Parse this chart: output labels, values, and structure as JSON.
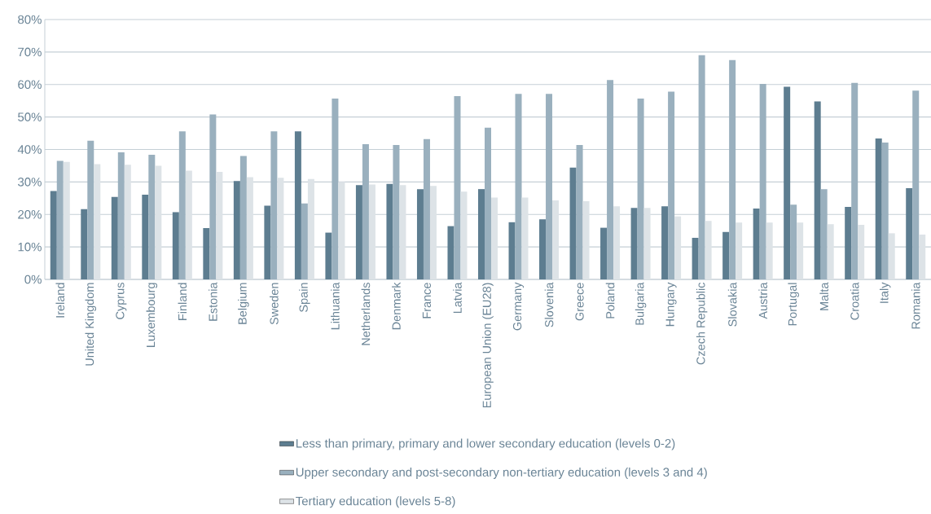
{
  "chart_data": {
    "type": "bar",
    "categories": [
      "Ireland",
      "United Kingdom",
      "Cyprus",
      "Luxembourg",
      "Finland",
      "Estonia",
      "Belgium",
      "Sweden",
      "Spain",
      "Lithuania",
      "Netherlands",
      "Denmark",
      "France",
      "Latvia",
      "European Union (EU28)",
      "Germany",
      "Slovenia",
      "Greece",
      "Poland",
      "Bulgaria",
      "Hungary",
      "Czech Republic",
      "Slovakia",
      "Austria",
      "Portugal",
      "Malta",
      "Croatia",
      "Italy",
      "Romania"
    ],
    "series": [
      {
        "name": "Less than primary, primary and lower secondary education (levels 0-2)",
        "color": "#5d7d90",
        "values": [
          27.2,
          21.6,
          25.4,
          26.1,
          20.7,
          15.8,
          30.3,
          22.7,
          45.6,
          14.4,
          29.0,
          29.4,
          27.8,
          16.4,
          27.8,
          17.6,
          18.5,
          34.4,
          15.9,
          22.0,
          22.5,
          12.8,
          14.6,
          21.8,
          59.3,
          54.8,
          22.3,
          43.4,
          28.1
        ]
      },
      {
        "name": "Upper secondary and post-secondary non-tertiary education (levels 3 and 4)",
        "color": "#9ab0be",
        "values": [
          36.5,
          42.7,
          39.1,
          38.4,
          45.6,
          50.8,
          38.0,
          45.6,
          23.4,
          55.7,
          41.6,
          41.4,
          43.2,
          56.4,
          46.7,
          57.1,
          57.1,
          41.4,
          61.4,
          55.7,
          57.8,
          69.0,
          67.5,
          60.2,
          23.0,
          27.8,
          60.5,
          42.1,
          58.1
        ]
      },
      {
        "name": "Tertiary education (levels 5-8)",
        "color": "#dde3e7",
        "values": [
          36.2,
          35.5,
          35.3,
          35.0,
          33.5,
          33.1,
          31.5,
          31.3,
          30.9,
          30.0,
          29.2,
          29.0,
          28.8,
          27.0,
          25.2,
          25.2,
          24.3,
          24.1,
          22.5,
          22.0,
          19.4,
          18.0,
          17.5,
          17.5,
          17.5,
          17.0,
          16.8,
          14.2,
          13.8
        ]
      }
    ],
    "ylim": [
      0,
      80
    ],
    "yticks": [
      {
        "value": 0,
        "label": "0%"
      },
      {
        "value": 10,
        "label": "10%"
      },
      {
        "value": 20,
        "label": "20%"
      },
      {
        "value": 30,
        "label": "30%"
      },
      {
        "value": 40,
        "label": "40%"
      },
      {
        "value": 50,
        "label": "50%"
      },
      {
        "value": 60,
        "label": "60%"
      },
      {
        "value": 70,
        "label": "70%"
      },
      {
        "value": 80,
        "label": "80%"
      }
    ],
    "grid": "y",
    "legend": "bottom"
  }
}
